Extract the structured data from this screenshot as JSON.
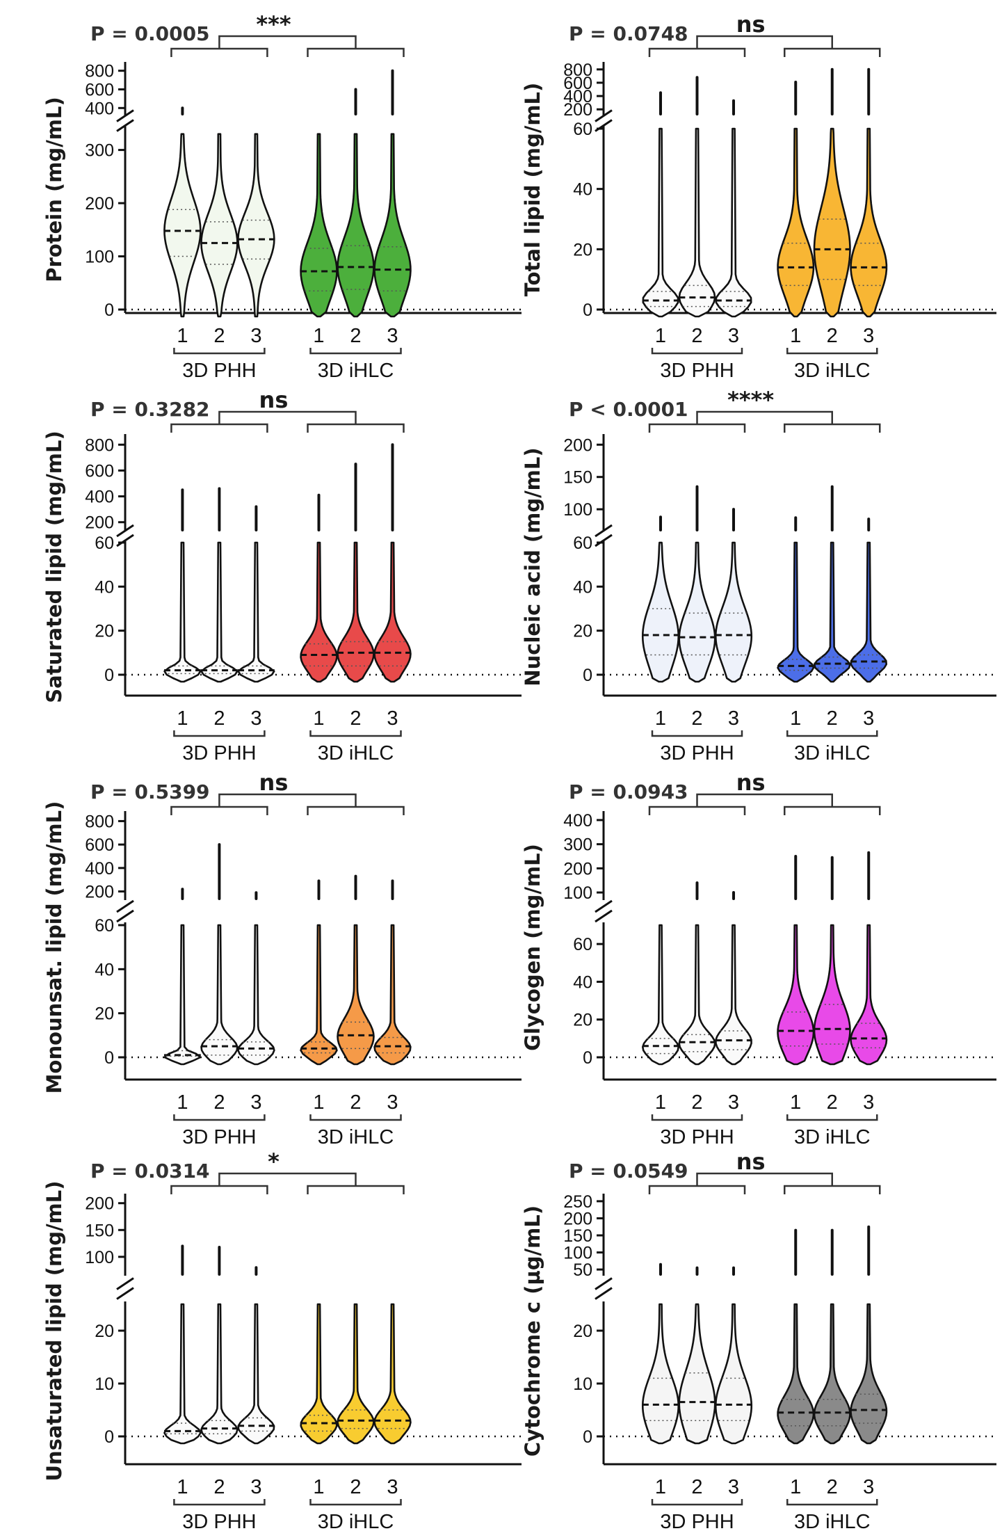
{
  "chart_data": [
    {
      "type": "violin",
      "ylabel": "Protein (mg/mL)",
      "p_value": "P = 0.0005",
      "significance": "***",
      "groups": [
        "3D PHH",
        "3D iHLC"
      ],
      "categories": [
        "1",
        "2",
        "3"
      ],
      "axis_break": {
        "lower": [
          0,
          340
        ],
        "upper": [
          350,
          850
        ]
      },
      "yticks_lower": [
        0,
        100,
        200,
        300
      ],
      "yticks_upper": [
        400,
        600,
        800
      ],
      "colors": {
        "3D PHH": "#f2f8ee",
        "3D iHLC": "#4caf3c"
      },
      "violins": [
        {
          "group": "3D PHH",
          "cat": "1",
          "median": 148,
          "q1": 100,
          "q3": 188,
          "max": 330,
          "outlier": 400
        },
        {
          "group": "3D PHH",
          "cat": "2",
          "median": 125,
          "q1": 85,
          "q3": 165,
          "max": 330,
          "outlier": null
        },
        {
          "group": "3D PHH",
          "cat": "3",
          "median": 132,
          "q1": 95,
          "q3": 168,
          "max": 330,
          "outlier": null
        },
        {
          "group": "3D iHLC",
          "cat": "1",
          "median": 72,
          "q1": 35,
          "q3": 115,
          "max": 330,
          "outlier": null
        },
        {
          "group": "3D iHLC",
          "cat": "2",
          "median": 80,
          "q1": 38,
          "q3": 120,
          "max": 330,
          "outlier": 600
        },
        {
          "group": "3D iHLC",
          "cat": "3",
          "median": 75,
          "q1": 35,
          "q3": 118,
          "max": 330,
          "outlier": 800
        }
      ]
    },
    {
      "type": "violin",
      "ylabel": "Total lipid (mg/mL)",
      "p_value": "P = 0.0748",
      "significance": "ns",
      "groups": [
        "3D PHH",
        "3D iHLC"
      ],
      "categories": [
        "1",
        "2",
        "3"
      ],
      "axis_break": {
        "lower": [
          0,
          60
        ],
        "upper": [
          150,
          850
        ]
      },
      "yticks_lower": [
        0,
        20,
        40,
        60
      ],
      "yticks_upper": [
        200,
        400,
        600,
        800
      ],
      "colors": {
        "3D PHH": "#fafafa",
        "3D iHLC": "#f8b634"
      },
      "violins": [
        {
          "group": "3D PHH",
          "cat": "1",
          "median": 3,
          "q1": 1,
          "q3": 6,
          "max": 60,
          "outlier": 450
        },
        {
          "group": "3D PHH",
          "cat": "2",
          "median": 4,
          "q1": 1,
          "q3": 8,
          "max": 60,
          "outlier": 680
        },
        {
          "group": "3D PHH",
          "cat": "3",
          "median": 3,
          "q1": 1,
          "q3": 6,
          "max": 60,
          "outlier": 330
        },
        {
          "group": "3D iHLC",
          "cat": "1",
          "median": 14,
          "q1": 8,
          "q3": 22,
          "max": 60,
          "outlier": 610
        },
        {
          "group": "3D iHLC",
          "cat": "2",
          "median": 20,
          "q1": 10,
          "q3": 30,
          "max": 60,
          "outlier": 800
        },
        {
          "group": "3D iHLC",
          "cat": "3",
          "median": 14,
          "q1": 8,
          "q3": 22,
          "max": 60,
          "outlier": 800
        }
      ]
    },
    {
      "type": "violin",
      "ylabel": "Saturated  lipid (mg/mL)",
      "p_value": "P = 0.3282",
      "significance": "ns",
      "groups": [
        "3D PHH",
        "3D iHLC"
      ],
      "categories": [
        "1",
        "2",
        "3"
      ],
      "axis_break": {
        "lower": [
          0,
          60
        ],
        "upper": [
          150,
          850
        ]
      },
      "yticks_lower": [
        0,
        20,
        40,
        60
      ],
      "yticks_upper": [
        200,
        400,
        600,
        800
      ],
      "colors": {
        "3D PHH": "#fafafa",
        "3D iHLC": "#e84a4a"
      },
      "violins": [
        {
          "group": "3D PHH",
          "cat": "1",
          "median": 2,
          "q1": 0.5,
          "q3": 4,
          "max": 60,
          "outlier": 450
        },
        {
          "group": "3D PHH",
          "cat": "2",
          "median": 2,
          "q1": 0.5,
          "q3": 4,
          "max": 60,
          "outlier": 460
        },
        {
          "group": "3D PHH",
          "cat": "3",
          "median": 2,
          "q1": 0.5,
          "q3": 4,
          "max": 60,
          "outlier": 320
        },
        {
          "group": "3D iHLC",
          "cat": "1",
          "median": 9,
          "q1": 4,
          "q3": 14,
          "max": 60,
          "outlier": 410
        },
        {
          "group": "3D iHLC",
          "cat": "2",
          "median": 10,
          "q1": 4,
          "q3": 15,
          "max": 60,
          "outlier": 650
        },
        {
          "group": "3D iHLC",
          "cat": "3",
          "median": 10,
          "q1": 4,
          "q3": 15,
          "max": 60,
          "outlier": 800
        }
      ]
    },
    {
      "type": "violin",
      "ylabel": "Nucleic acid (mg/mL)",
      "p_value": "P < 0.0001",
      "significance": "****",
      "groups": [
        "3D PHH",
        "3D iHLC"
      ],
      "categories": [
        "1",
        "2",
        "3"
      ],
      "axis_break": {
        "lower": [
          0,
          60
        ],
        "upper": [
          70,
          210
        ]
      },
      "yticks_lower": [
        0,
        20,
        40,
        60
      ],
      "yticks_upper": [
        100,
        150,
        200
      ],
      "colors": {
        "3D PHH": "#eef2fa",
        "3D iHLC": "#4c6ee8"
      },
      "violins": [
        {
          "group": "3D PHH",
          "cat": "1",
          "median": 18,
          "q1": 9,
          "q3": 30,
          "max": 60,
          "outlier": 88
        },
        {
          "group": "3D PHH",
          "cat": "2",
          "median": 17,
          "q1": 9,
          "q3": 28,
          "max": 60,
          "outlier": 135
        },
        {
          "group": "3D PHH",
          "cat": "3",
          "median": 18,
          "q1": 9,
          "q3": 28,
          "max": 60,
          "outlier": 100
        },
        {
          "group": "3D iHLC",
          "cat": "1",
          "median": 4,
          "q1": 2,
          "q3": 7,
          "max": 60,
          "outlier": 87
        },
        {
          "group": "3D iHLC",
          "cat": "2",
          "median": 5,
          "q1": 3,
          "q3": 8,
          "max": 60,
          "outlier": 135
        },
        {
          "group": "3D iHLC",
          "cat": "3",
          "median": 6,
          "q1": 3,
          "q3": 9,
          "max": 60,
          "outlier": 85
        }
      ]
    },
    {
      "type": "violin",
      "ylabel": "Monounsat. lipid (mg/mL)",
      "p_value": "P = 0.5399",
      "significance": "ns",
      "groups": [
        "3D PHH",
        "3D iHLC"
      ],
      "categories": [
        "1",
        "2",
        "3"
      ],
      "axis_break": {
        "lower": [
          0,
          60
        ],
        "upper": [
          150,
          850
        ]
      },
      "yticks_lower": [
        0,
        20,
        40,
        60
      ],
      "yticks_upper": [
        200,
        400,
        600,
        800
      ],
      "colors": {
        "3D PHH": "#fafafa",
        "3D iHLC": "#f59a48"
      },
      "violins": [
        {
          "group": "3D PHH",
          "cat": "1",
          "median": 1,
          "q1": 0.5,
          "q3": 3,
          "max": 60,
          "outlier": 220
        },
        {
          "group": "3D PHH",
          "cat": "2",
          "median": 5,
          "q1": 1,
          "q3": 8,
          "max": 60,
          "outlier": 600
        },
        {
          "group": "3D PHH",
          "cat": "3",
          "median": 4,
          "q1": 1,
          "q3": 7,
          "max": 60,
          "outlier": 190
        },
        {
          "group": "3D iHLC",
          "cat": "1",
          "median": 4,
          "q1": 2,
          "q3": 7,
          "max": 60,
          "outlier": 290
        },
        {
          "group": "3D iHLC",
          "cat": "2",
          "median": 10,
          "q1": 4,
          "q3": 16,
          "max": 60,
          "outlier": 330
        },
        {
          "group": "3D iHLC",
          "cat": "3",
          "median": 5,
          "q1": 2,
          "q3": 9,
          "max": 60,
          "outlier": 290
        }
      ]
    },
    {
      "type": "violin",
      "ylabel": "Glycogen (mg/mL)",
      "p_value": "P = 0.0943",
      "significance": "ns",
      "groups": [
        "3D PHH",
        "3D iHLC"
      ],
      "categories": [
        "1",
        "2",
        "3"
      ],
      "axis_break": {
        "lower": [
          0,
          70
        ],
        "upper": [
          80,
          420
        ]
      },
      "yticks_lower": [
        0,
        20,
        40,
        60
      ],
      "yticks_upper": [
        100,
        200,
        300,
        400
      ],
      "colors": {
        "3D PHH": "#fafafa",
        "3D iHLC": "#e84ae8"
      },
      "violins": [
        {
          "group": "3D PHH",
          "cat": "1",
          "median": 6,
          "q1": 2,
          "q3": 10,
          "max": 70,
          "outlier": null
        },
        {
          "group": "3D PHH",
          "cat": "2",
          "median": 8,
          "q1": 3,
          "q3": 12,
          "max": 70,
          "outlier": 140
        },
        {
          "group": "3D PHH",
          "cat": "3",
          "median": 9,
          "q1": 4,
          "q3": 14,
          "max": 70,
          "outlier": 100
        },
        {
          "group": "3D iHLC",
          "cat": "1",
          "median": 14,
          "q1": 6,
          "q3": 24,
          "max": 70,
          "outlier": 250
        },
        {
          "group": "3D iHLC",
          "cat": "2",
          "median": 15,
          "q1": 7,
          "q3": 28,
          "max": 70,
          "outlier": 245
        },
        {
          "group": "3D iHLC",
          "cat": "3",
          "median": 10,
          "q1": 5,
          "q3": 18,
          "max": 70,
          "outlier": 265
        }
      ]
    },
    {
      "type": "violin",
      "ylabel": "Unsaturated lipid (mg/mL)",
      "p_value": "P = 0.0314",
      "significance": "*",
      "groups": [
        "3D PHH",
        "3D iHLC"
      ],
      "categories": [
        "1",
        "2",
        "3"
      ],
      "axis_break": {
        "lower": [
          0,
          25
        ],
        "upper": [
          70,
          210
        ]
      },
      "yticks_lower": [
        0,
        10,
        20
      ],
      "yticks_upper": [
        100,
        150,
        200
      ],
      "colors": {
        "3D PHH": "#fafafa",
        "3D iHLC": "#f8cc30"
      },
      "violins": [
        {
          "group": "3D PHH",
          "cat": "1",
          "median": 1,
          "q1": 0.5,
          "q3": 2.5,
          "max": 25,
          "outlier": 120
        },
        {
          "group": "3D PHH",
          "cat": "2",
          "median": 1.5,
          "q1": 0.5,
          "q3": 3,
          "max": 25,
          "outlier": 118
        },
        {
          "group": "3D PHH",
          "cat": "3",
          "median": 2,
          "q1": 1,
          "q3": 3.5,
          "max": 25,
          "outlier": 80
        },
        {
          "group": "3D iHLC",
          "cat": "1",
          "median": 2.5,
          "q1": 1,
          "q3": 4,
          "max": 25,
          "outlier": null
        },
        {
          "group": "3D iHLC",
          "cat": "2",
          "median": 3,
          "q1": 1.5,
          "q3": 5,
          "max": 25,
          "outlier": null
        },
        {
          "group": "3D iHLC",
          "cat": "3",
          "median": 3,
          "q1": 1.5,
          "q3": 5,
          "max": 25,
          "outlier": null
        }
      ]
    },
    {
      "type": "violin",
      "ylabel": "Cytochrome c (µg/mL)",
      "p_value": "P = 0.0549",
      "significance": "ns",
      "groups": [
        "3D PHH",
        "3D iHLC"
      ],
      "categories": [
        "1",
        "2",
        "3"
      ],
      "axis_break": {
        "lower": [
          0,
          25
        ],
        "upper": [
          40,
          260
        ]
      },
      "yticks_lower": [
        0,
        10,
        20
      ],
      "yticks_upper": [
        50,
        100,
        150,
        200,
        250
      ],
      "colors": {
        "3D PHH": "#f5f5f5",
        "3D iHLC": "#8a8a8a"
      },
      "violins": [
        {
          "group": "3D PHH",
          "cat": "1",
          "median": 6,
          "q1": 3,
          "q3": 11,
          "max": 25,
          "outlier": 65
        },
        {
          "group": "3D PHH",
          "cat": "2",
          "median": 6.5,
          "q1": 3,
          "q3": 12,
          "max": 25,
          "outlier": 55
        },
        {
          "group": "3D PHH",
          "cat": "3",
          "median": 6,
          "q1": 3,
          "q3": 11,
          "max": 25,
          "outlier": 55
        },
        {
          "group": "3D iHLC",
          "cat": "1",
          "median": 4.5,
          "q1": 2,
          "q3": 7,
          "max": 25,
          "outlier": 165
        },
        {
          "group": "3D iHLC",
          "cat": "2",
          "median": 4.5,
          "q1": 2,
          "q3": 7,
          "max": 25,
          "outlier": 165
        },
        {
          "group": "3D iHLC",
          "cat": "3",
          "median": 5,
          "q1": 2.5,
          "q3": 8,
          "max": 25,
          "outlier": 175
        }
      ]
    }
  ]
}
